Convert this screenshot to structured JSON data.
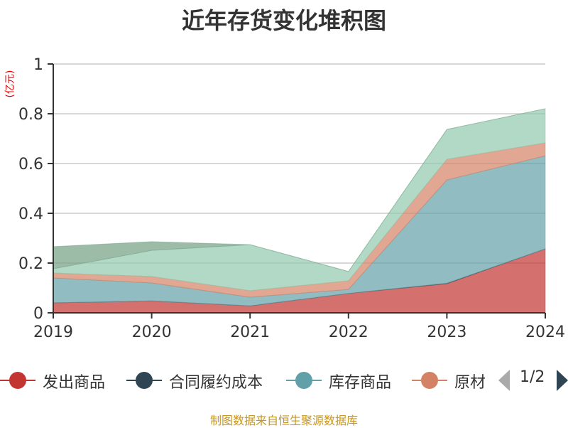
{
  "chart_data": {
    "type": "area",
    "stacked": true,
    "title": "近年存货变化堆积图",
    "ylabel": "(亿元)",
    "xlabel": "",
    "categories": [
      "2019",
      "2020",
      "2021",
      "2022",
      "2023",
      "2024"
    ],
    "ylim": [
      0,
      1
    ],
    "yticks": [
      "0",
      "0.2",
      "0.4",
      "0.6",
      "0.8",
      "1"
    ],
    "grid": true,
    "legend_position": "bottom",
    "legend_page": "1/2",
    "series": [
      {
        "name": "发出商品",
        "color": "#c23531",
        "values": [
          0.04,
          0.048,
          0.028,
          0.078,
          0.117,
          0.257
        ]
      },
      {
        "name": "合同履约成本",
        "color": "#2f4554",
        "values": [
          0.0,
          0.0,
          0.0,
          0.0,
          0.002,
          0.0
        ]
      },
      {
        "name": "库存商品",
        "color": "#61a0a8",
        "values": [
          0.1,
          0.072,
          0.035,
          0.016,
          0.415,
          0.374
        ]
      },
      {
        "name": "原材料",
        "color": "#d48265",
        "values": [
          0.02,
          0.026,
          0.026,
          0.035,
          0.083,
          0.052
        ]
      },
      {
        "color": "#91c7ae",
        "values": [
          0.017,
          0.105,
          0.185,
          0.037,
          0.12,
          0.137
        ]
      },
      {
        "color": "#749f83",
        "values": [
          0.089,
          0.035,
          0.0,
          0.0,
          0.0,
          0.0
        ]
      }
    ]
  },
  "source": "制图数据来自恒生聚源数据库"
}
